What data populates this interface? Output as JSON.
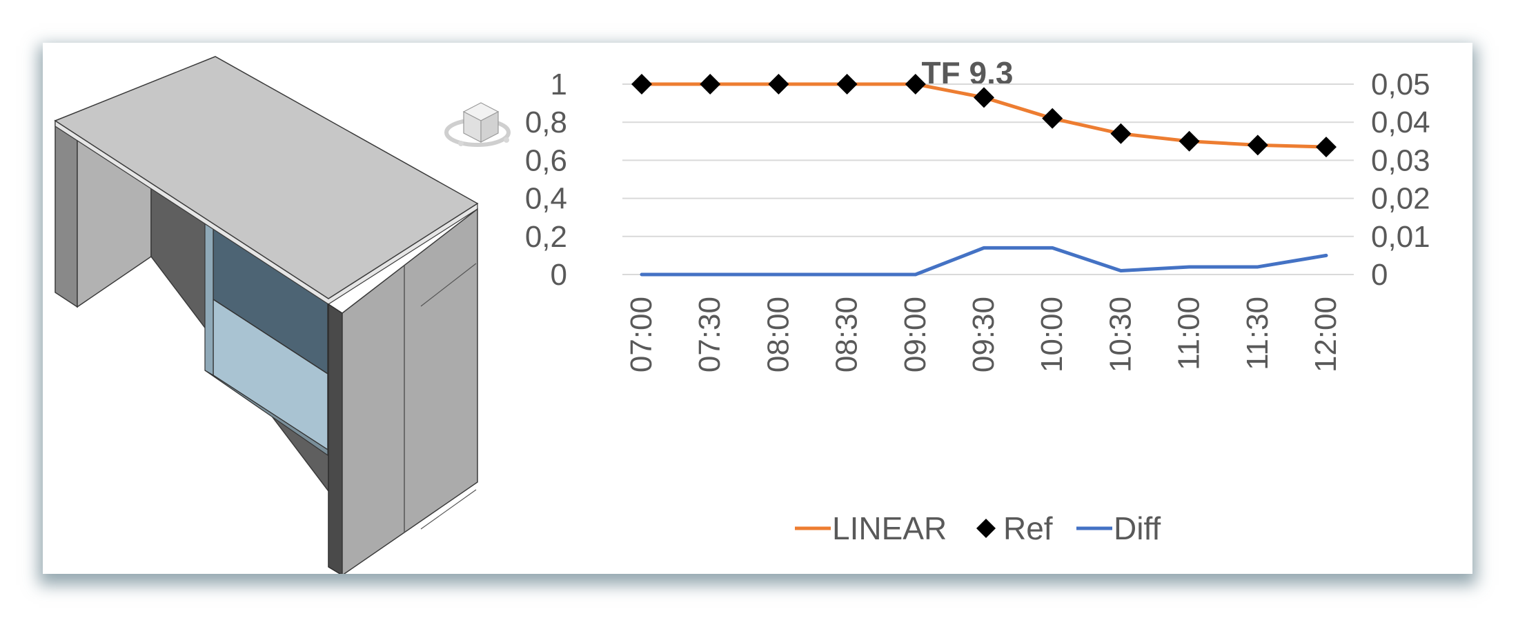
{
  "chart_data": {
    "type": "line",
    "title": "TF 9.3",
    "categories": [
      "07:00",
      "07:30",
      "08:00",
      "08:30",
      "09:00",
      "09:30",
      "10:00",
      "10:30",
      "11:00",
      "11:30",
      "12:00"
    ],
    "series": [
      {
        "name": "LINEAR",
        "axis": "left",
        "color": "#ED7D31",
        "marker": "none",
        "values": [
          1.0,
          1.0,
          1.0,
          1.0,
          1.0,
          0.93,
          0.82,
          0.74,
          0.7,
          0.68,
          0.67
        ]
      },
      {
        "name": "Ref",
        "axis": "left",
        "color": "#000000",
        "marker": "diamond",
        "values": [
          1.0,
          1.0,
          1.0,
          1.0,
          1.0,
          0.93,
          0.82,
          0.74,
          0.7,
          0.68,
          0.67
        ]
      },
      {
        "name": "Diff",
        "axis": "right",
        "color": "#4472C4",
        "marker": "none",
        "values": [
          0,
          0,
          0,
          0,
          0,
          0.007,
          0.007,
          0.001,
          0.002,
          0.002,
          0.005
        ]
      }
    ],
    "y_left": {
      "min": 0,
      "max": 1,
      "ticks": [
        "0",
        "0,2",
        "0,4",
        "0,6",
        "0,8",
        "1"
      ]
    },
    "y_right": {
      "min": 0,
      "max": 0.05,
      "ticks": [
        "0",
        "0,01",
        "0,02",
        "0,03",
        "0,04",
        "0,05"
      ]
    },
    "xlabel": "",
    "ylabel": "",
    "grid": true,
    "legend": "bottom"
  },
  "illustration": {
    "subject": "3d-wall-window-model",
    "viewcube_icon": "viewcube-icon"
  }
}
